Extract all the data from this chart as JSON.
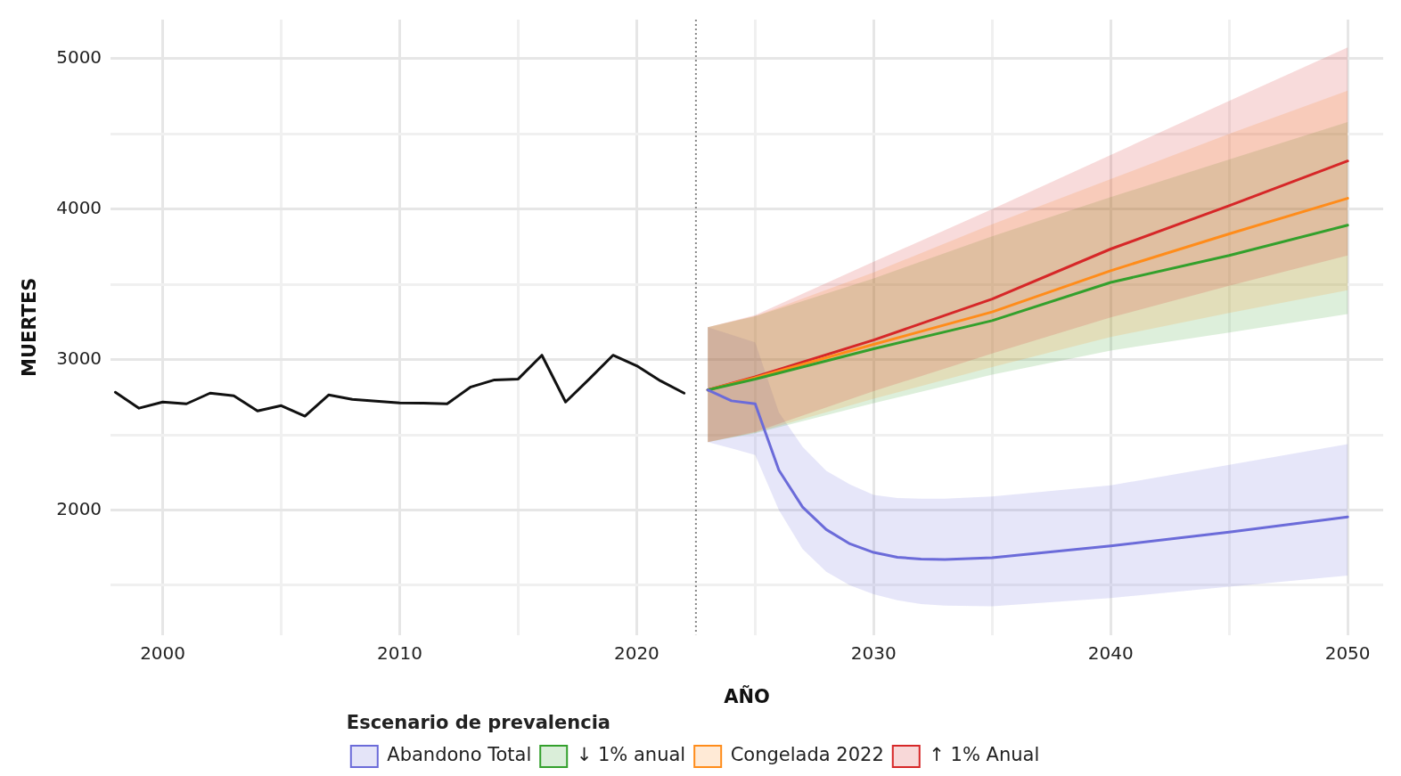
{
  "chart_data": {
    "type": "line",
    "xlabel": "AÑO",
    "ylabel": "MUERTES",
    "legend_title": "Escenario de prevalencia",
    "legend": "bottom",
    "grid": true,
    "marker": "none",
    "line_style": "solid",
    "xlim": [
      1997.8,
      2051.5
    ],
    "xticks": [
      2000,
      {
        "value": 2005,
        "label": null
      },
      2010,
      {
        "value": 2015,
        "label": null
      },
      2020,
      {
        "value": 2025,
        "label": null
      },
      2030,
      {
        "value": 2035,
        "label": null
      },
      2040,
      {
        "value": 2045,
        "label": null
      },
      2050
    ],
    "ylim": [
      1170,
      5260
    ],
    "yticks": [
      {
        "value": 1500,
        "label": null
      },
      2000,
      {
        "value": 2500,
        "label": null
      },
      3000,
      {
        "value": 3500,
        "label": null
      },
      4000,
      {
        "value": 4500,
        "label": null
      },
      5000
    ],
    "ref_lines": [
      {
        "axis": "x",
        "value": 2022.5,
        "color": "#888888",
        "line_style": "dotted"
      }
    ],
    "series": [
      {
        "color": "#111111",
        "x": [
          1998,
          1999,
          2000,
          2001,
          2002,
          2003,
          2004,
          2005,
          2006,
          2007,
          2008,
          2009,
          2010,
          2011,
          2012,
          2013,
          2014,
          2015,
          2016,
          2017,
          2018,
          2019,
          2020,
          2021,
          2022
        ],
        "values": [
          2783,
          2677,
          2718,
          2706,
          2777,
          2759,
          2659,
          2694,
          2624,
          2765,
          2736,
          2724,
          2712,
          2710,
          2706,
          2818,
          2865,
          2871,
          3029,
          2718,
          2871,
          3029,
          2959,
          2859,
          2777
        ]
      },
      {
        "name": "Abandono Total",
        "color": "#6b6bd9",
        "x": [
          2023,
          2024,
          2025,
          2026,
          2027,
          2028,
          2029,
          2030,
          2031,
          2032,
          2033,
          2035,
          2040,
          2045,
          2050
        ],
        "values": [
          2798,
          2726,
          2706,
          2265,
          2020,
          1870,
          1775,
          1718,
          1686,
          1674,
          1671,
          1683,
          1761,
          1853,
          1954
        ],
        "lower": [
          2452,
          2410,
          2366,
          2000,
          1740,
          1590,
          1500,
          1440,
          1400,
          1375,
          1365,
          1360,
          1415,
          1490,
          1565
        ],
        "upper": [
          3216,
          3165,
          3115,
          2650,
          2420,
          2260,
          2170,
          2100,
          2080,
          2075,
          2075,
          2090,
          2164,
          2300,
          2438
        ]
      },
      {
        "name": "↓ 1% anual",
        "color": "#33a02c",
        "x": [
          2023,
          2025,
          2030,
          2035,
          2040,
          2045,
          2050
        ],
        "values": [
          2798,
          2870,
          3072,
          3259,
          3513,
          3692,
          3893
        ],
        "lower": [
          2452,
          2510,
          2710,
          2900,
          3060,
          3180,
          3303
        ],
        "upper": [
          3216,
          3288,
          3540,
          3820,
          4080,
          4330,
          4579
        ]
      },
      {
        "name": "Congelada 2022",
        "color": "#ff8c1a",
        "x": [
          2023,
          2025,
          2030,
          2035,
          2040,
          2045,
          2050
        ],
        "values": [
          2798,
          2879,
          3101,
          3317,
          3591,
          3836,
          4072
        ],
        "lower": [
          2452,
          2515,
          2740,
          2950,
          3150,
          3310,
          3461
        ],
        "upper": [
          3216,
          3290,
          3580,
          3900,
          4200,
          4500,
          4787
        ]
      },
      {
        "name": "↑ 1% Anual",
        "color": "#d62728",
        "x": [
          2023,
          2025,
          2030,
          2035,
          2040,
          2045,
          2050
        ],
        "values": [
          2798,
          2885,
          3130,
          3403,
          3735,
          4023,
          4320
        ],
        "lower": [
          2452,
          2520,
          2790,
          3040,
          3280,
          3490,
          3692
        ],
        "upper": [
          3216,
          3295,
          3650,
          4000,
          4360,
          4720,
          5075
        ]
      }
    ]
  }
}
